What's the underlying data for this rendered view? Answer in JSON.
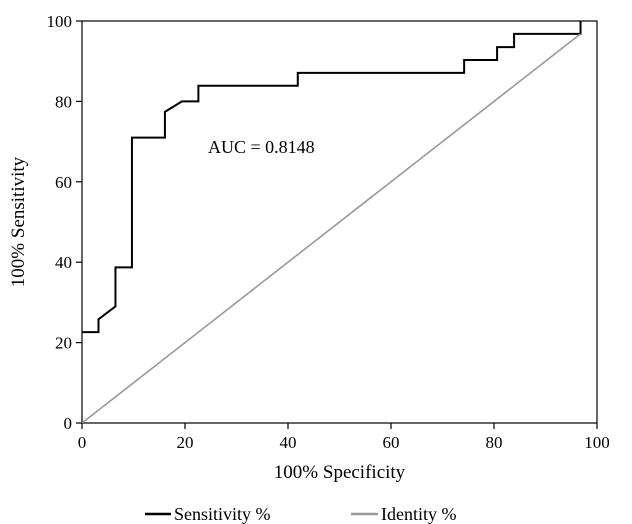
{
  "chart_data": {
    "type": "line",
    "title": "",
    "xlabel": "100% Specificity",
    "ylabel": "100% Sensitivity",
    "xlim": [
      0,
      100
    ],
    "ylim": [
      0,
      100
    ],
    "x_ticks": [
      0,
      20,
      40,
      60,
      80,
      100
    ],
    "y_ticks": [
      0,
      20,
      40,
      60,
      80,
      100
    ],
    "x_tick_labels": [
      "0",
      "20",
      "40",
      "60",
      "80",
      "100"
    ],
    "y_tick_labels": [
      "0",
      "20",
      "40",
      "60",
      "80",
      "100"
    ],
    "grid": false,
    "legend_position": "bottom",
    "annotation": "AUC = 0.8148",
    "series": [
      {
        "name": "Sensitivity %",
        "color": "#000000",
        "style": "step",
        "x": [
          0,
          3.2,
          3.2,
          6.5,
          6.5,
          9.7,
          9.7,
          16.1,
          16.1,
          19.4,
          19.4,
          22.6,
          22.6,
          41.9,
          41.9,
          74.2,
          74.2,
          80.6,
          80.6,
          83.9,
          83.9,
          96.8,
          96.8
        ],
        "y": [
          22.6,
          22.6,
          25.8,
          29.0,
          38.7,
          38.7,
          71.0,
          71.0,
          77.4,
          80.0,
          80.0,
          80.0,
          83.9,
          83.9,
          87.1,
          87.1,
          90.3,
          90.3,
          93.5,
          93.5,
          96.8,
          96.8,
          100
        ]
      },
      {
        "name": "Identity %",
        "color": "#999999",
        "style": "line",
        "x": [
          0,
          96.8
        ],
        "y": [
          0,
          96.8
        ]
      }
    ]
  }
}
